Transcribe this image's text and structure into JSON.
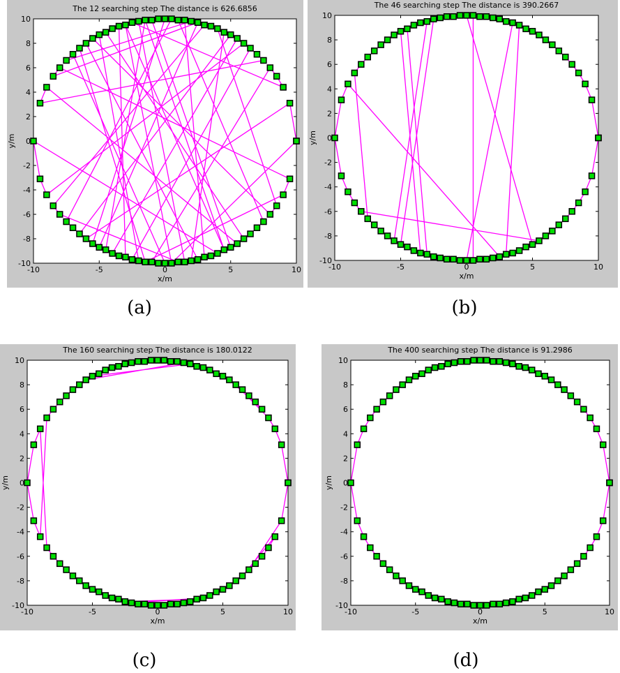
{
  "chart_data": [
    {
      "type": "line",
      "title": "The 12 searching step  The  distance is 626.6856",
      "xlabel": "x/m",
      "ylabel": "y/m",
      "caption": "(a)",
      "xlim": [
        -10,
        10
      ],
      "ylim": [
        -10,
        10
      ],
      "xticks": [
        -10,
        -5,
        0,
        5,
        10
      ],
      "yticks": [
        -10,
        -8,
        -6,
        -4,
        -2,
        0,
        2,
        4,
        6,
        8,
        10
      ],
      "marker_color": "#00e000",
      "x": [
        10,
        9.5,
        -6,
        -5.5,
        0,
        -0.5,
        -1,
        5,
        5.5,
        -9,
        -9.5,
        7.5,
        7,
        6.5,
        -2.5,
        -2,
        -5,
        -5.5,
        8,
        8.5,
        4,
        3.5,
        3,
        -8.5,
        -8,
        1,
        1.5,
        -2,
        -2.5,
        9,
        8.5,
        8,
        -1,
        -0.5,
        0,
        -7,
        -7.5,
        2,
        1.5,
        3,
        3.5,
        4,
        -10,
        -9.5,
        -9,
        6,
        5.5,
        -4,
        -3.5,
        -3,
        -3.5,
        -4,
        -4.5,
        6,
        6.5,
        7,
        7.5,
        1,
        0.5,
        -7.5,
        -7,
        -6.5,
        5,
        4.5,
        2,
        2.5,
        -6,
        -6.5,
        -1.5,
        9,
        9.5,
        -8,
        -8.5,
        2.5,
        -5,
        -4.5,
        -1.5,
        4.5,
        -3,
        0.5,
        10
      ],
      "series": [
        {
          "color": "#ff00ff",
          "values": [
            0,
            3.1,
            -8,
            -8.4,
            10,
            10,
            9.9,
            -8.7,
            -8.4,
            4.4,
            3.1,
            6.6,
            7.1,
            7.6,
            -9.7,
            -9.8,
            8.7,
            8.4,
            -6,
            -5.3,
            9.2,
            9.4,
            9.5,
            -5.3,
            -6,
            -9.9,
            -9.9,
            9.8,
            9.7,
            4.4,
            5.3,
            6,
            -9.9,
            -10,
            -10,
            7.1,
            6.6,
            9.8,
            9.9,
            -9.5,
            -9.4,
            -9.2,
            0,
            -3.1,
            -4.4,
            8,
            8.4,
            -9.2,
            -9.4,
            -9.5,
            9.4,
            9.2,
            8.9,
            -8,
            -7.6,
            -7.1,
            -6.6,
            9.9,
            10,
            -6.6,
            -7.1,
            -7.6,
            8.7,
            8.9,
            -9.8,
            -9.7,
            8,
            7.6,
            -9.9,
            -4.4,
            -3.1,
            6,
            5.3,
            9.7,
            -8.7,
            -8.9,
            9.9,
            -8.9,
            9.5,
            -10,
            0
          ]
        }
      ]
    },
    {
      "type": "line",
      "title": "The 46 searching step  The  distance is 390.2667",
      "xlabel": "x/m",
      "ylabel": "y/m",
      "caption": "(b)",
      "xlim": [
        -10,
        10
      ],
      "ylim": [
        -10,
        10
      ],
      "xticks": [
        -10,
        -5,
        0,
        5,
        10
      ],
      "yticks": [
        -10,
        -8,
        -6,
        -4,
        -2,
        0,
        2,
        4,
        6,
        8,
        10
      ],
      "marker_color": "#00e000",
      "x": [
        10,
        9.5,
        9,
        8.5,
        8,
        7.5,
        7,
        6.5,
        6,
        5.5,
        5,
        4.5,
        4,
        3,
        3.5,
        4,
        4.5,
        5,
        0,
        -0.5,
        -1,
        -1.5,
        -2,
        -2.5,
        -5,
        -4.5,
        -4,
        -3.5,
        -5,
        -5.5,
        -6,
        -6.5,
        -7,
        -7.5,
        -8,
        -8.5,
        -7.5,
        -7,
        -6.5,
        -6,
        -5.5,
        -3,
        -3.5,
        -4,
        -4.5,
        -3,
        -2.5,
        -2,
        -1.5,
        -1,
        -0.5,
        0,
        3.5,
        3,
        2.5,
        2,
        1.5,
        1,
        0.5,
        0.5,
        1,
        1.5,
        2,
        2.5,
        -9,
        -9.5,
        -10,
        -9.5,
        -9,
        -8.5,
        -8,
        5.5,
        6,
        6.5,
        7,
        7.5,
        8,
        8.5,
        9,
        9.5,
        10
      ],
      "series": [
        {
          "color": "#ff00ff",
          "values": [
            0,
            3.1,
            4.4,
            5.3,
            6,
            6.6,
            7.1,
            7.6,
            8,
            8.4,
            8.7,
            8.9,
            9.2,
            -9.5,
            -9.4,
            -9.2,
            -8.9,
            -8.7,
            10,
            10,
            9.9,
            9.9,
            9.8,
            9.7,
            -8.7,
            -8.9,
            -9.2,
            -9.4,
            8.7,
            8.4,
            8,
            7.6,
            7.1,
            6.6,
            6,
            5.3,
            -6.6,
            -7.1,
            -7.6,
            -8,
            -8.4,
            9.5,
            9.4,
            9.2,
            8.9,
            -9.5,
            -9.7,
            -9.8,
            -9.9,
            -9.9,
            -10,
            -10,
            9.4,
            9.5,
            9.7,
            9.8,
            9.9,
            9.9,
            10,
            -10,
            -9.9,
            -9.9,
            -9.8,
            -9.7,
            4.4,
            3.1,
            0,
            -3.1,
            -4.4,
            -5.3,
            -6,
            -8.4,
            -8,
            -7.6,
            -7.1,
            -6.6,
            -6,
            -5.3,
            -4.4,
            -3.1,
            0
          ]
        }
      ]
    },
    {
      "type": "line",
      "title": "The 160 searching step  The  distance is 180.0122",
      "xlabel": "x/m",
      "ylabel": "y/m",
      "caption": "(c)",
      "xlim": [
        -10,
        10
      ],
      "ylim": [
        -10,
        10
      ],
      "xticks": [
        -10,
        -5,
        0,
        5,
        10
      ],
      "yticks": [
        -10,
        -8,
        -6,
        -4,
        -2,
        0,
        2,
        4,
        6,
        8,
        10
      ],
      "marker_color": "#00e000",
      "x": [
        10,
        9.5,
        9,
        8.5,
        6,
        6.5,
        7,
        7.5,
        8,
        5.5,
        5,
        4.5,
        4,
        3.5,
        3,
        2.5,
        -5,
        -4.5,
        -4,
        -3.5,
        -3,
        -2.5,
        -2,
        -1.5,
        -1,
        -0.5,
        0,
        0.5,
        1,
        1.5,
        2,
        -5.5,
        -6,
        -6.5,
        -7,
        -7.5,
        -8,
        -8.5,
        -9,
        -9.5,
        -10,
        -9.5,
        -9,
        -8.5,
        -8,
        -7.5,
        -7,
        -6.5,
        -6,
        -5.5,
        -5,
        -4.5,
        -4,
        -3.5,
        -3,
        -2.5,
        3,
        2.5,
        2,
        1.5,
        1,
        0.5,
        0,
        -0.5,
        -1,
        -1.5,
        -2,
        3.5,
        4,
        4.5,
        5,
        5.5,
        6,
        6.5,
        9,
        8.5,
        8,
        7.5,
        7,
        9.5,
        10
      ],
      "series": [
        {
          "color": "#ff00ff",
          "values": [
            0,
            3.1,
            4.4,
            5.3,
            8,
            7.6,
            7.1,
            6.6,
            6,
            8.4,
            8.7,
            8.9,
            9.2,
            9.4,
            9.5,
            9.7,
            8.7,
            8.9,
            9.2,
            9.4,
            9.5,
            9.7,
            9.8,
            9.9,
            9.9,
            10,
            10,
            10,
            9.9,
            9.9,
            9.8,
            8.4,
            8,
            7.6,
            7.1,
            6.6,
            6,
            5.3,
            -4.4,
            -3.1,
            0,
            3.1,
            4.4,
            -5.3,
            -6,
            -6.6,
            -7.1,
            -7.6,
            -8,
            -8.4,
            -8.7,
            -8.9,
            -9.2,
            -9.4,
            -9.5,
            -9.7,
            -9.5,
            -9.7,
            -9.8,
            -9.9,
            -9.9,
            -10,
            -10,
            -10,
            -9.9,
            -9.9,
            -9.8,
            -9.4,
            -9.2,
            -8.9,
            -8.7,
            -8.4,
            -8,
            -7.6,
            -4.4,
            -5.3,
            -6,
            -6.6,
            -7.1,
            -3.1,
            0
          ]
        }
      ]
    },
    {
      "type": "line",
      "title": "The 400 searching step  The  distance is 91.2986",
      "xlabel": "x/m",
      "ylabel": "y/m",
      "caption": "(d)",
      "xlim": [
        -10,
        10
      ],
      "ylim": [
        -10,
        10
      ],
      "xticks": [
        -10,
        -5,
        0,
        5,
        10
      ],
      "yticks": [
        -10,
        -8,
        -6,
        -4,
        -2,
        0,
        2,
        4,
        6,
        8,
        10
      ],
      "marker_color": "#00e000",
      "x": [
        10,
        9.5,
        9,
        8.5,
        8,
        7.5,
        7,
        6.5,
        6,
        5.5,
        5,
        4.5,
        4,
        3.5,
        3,
        2.5,
        2,
        1.5,
        1,
        0.5,
        0,
        -0.5,
        -1,
        -1.5,
        -2,
        -2.5,
        -3,
        -3.5,
        -4,
        -4.5,
        -5,
        -5.5,
        -6,
        -6.5,
        -7,
        -7.5,
        -8,
        -8.5,
        -9,
        -9.5,
        -10,
        -9.5,
        -9,
        -8.5,
        -8,
        -7.5,
        -7,
        -6.5,
        -6,
        -5.5,
        -5,
        -4.5,
        -4,
        -3.5,
        -3,
        -2.5,
        -2,
        -1.5,
        -1,
        -0.5,
        0,
        0.5,
        1,
        1.5,
        2,
        2.5,
        3,
        3.5,
        4,
        4.5,
        5,
        5.5,
        6,
        6.5,
        7,
        7.5,
        8,
        8.5,
        9,
        9.5,
        10
      ],
      "series": [
        {
          "color": "#ff00ff",
          "values": [
            0,
            3.1,
            4.4,
            5.3,
            6,
            6.6,
            7.1,
            7.6,
            8,
            8.4,
            8.7,
            8.9,
            9.2,
            9.4,
            9.5,
            9.7,
            9.8,
            9.9,
            9.9,
            10,
            10,
            10,
            9.9,
            9.9,
            9.8,
            9.7,
            9.5,
            9.4,
            9.2,
            8.9,
            8.7,
            8.4,
            8,
            7.6,
            7.1,
            6.6,
            6,
            5.3,
            4.4,
            3.1,
            0,
            -3.1,
            -4.4,
            -5.3,
            -6,
            -6.6,
            -7.1,
            -7.6,
            -8,
            -8.4,
            -8.7,
            -8.9,
            -9.2,
            -9.4,
            -9.5,
            -9.7,
            -9.8,
            -9.9,
            -9.9,
            -10,
            -10,
            -10,
            -9.9,
            -9.9,
            -9.8,
            -9.7,
            -9.5,
            -9.4,
            -9.2,
            -8.9,
            -8.7,
            -8.4,
            -8,
            -7.6,
            -7.1,
            -6.6,
            -6,
            -5.3,
            -4.4,
            -3.1,
            0
          ]
        }
      ]
    }
  ]
}
